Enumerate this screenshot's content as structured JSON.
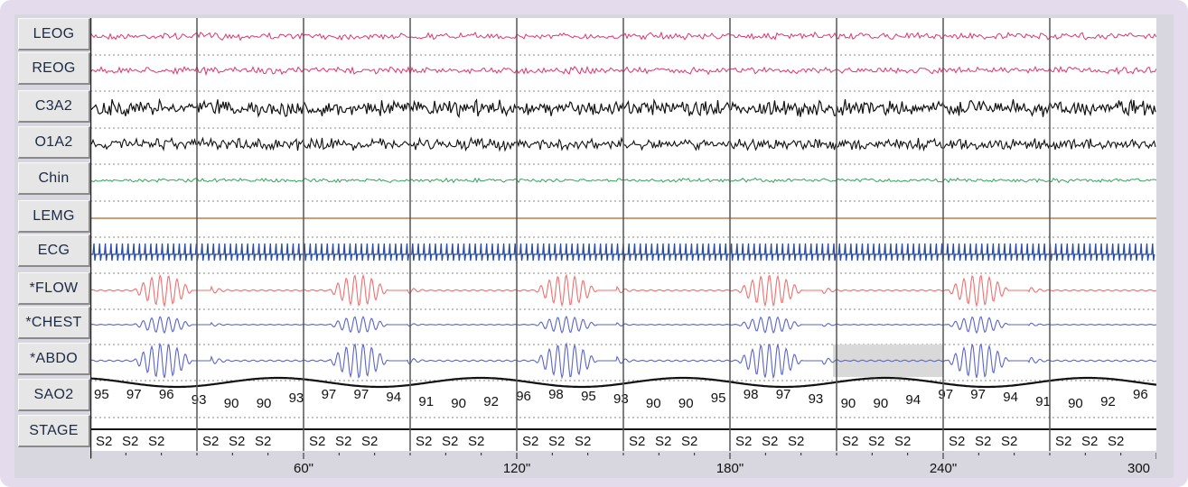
{
  "chart_data": {
    "type": "line",
    "title": "",
    "channels": [
      "LEOG",
      "REOG",
      "C3A2",
      "O1A2",
      "Chin",
      "LEMG",
      "ECG",
      "*FLOW",
      "*CHEST",
      "*ABDO",
      "SAO2",
      "STAGE"
    ],
    "x_axis": {
      "ticks": [
        "60\"",
        "120\"",
        "180\"",
        "240\"",
        "300"
      ],
      "range_seconds": [
        0,
        300
      ]
    },
    "epoch_boundaries_seconds": [
      30,
      60,
      90,
      120,
      150,
      180,
      210,
      240,
      270
    ],
    "sao2_values": [
      "95",
      "97",
      "96",
      "93",
      "90",
      "90",
      "93",
      "97",
      "97",
      "94",
      "91",
      "90",
      "92",
      "96",
      "98",
      "95",
      "93",
      "90",
      "90",
      "95",
      "98",
      "97",
      "93",
      "90",
      "90",
      "94",
      "97",
      "97",
      "94",
      "91",
      "90",
      "92",
      "96"
    ],
    "stage_values": [
      "S2",
      "S2",
      "S2",
      "S2",
      "S2",
      "S2",
      "S2",
      "S2",
      "S2",
      "S2",
      "S2",
      "S2",
      "S2",
      "S2",
      "S2",
      "S2",
      "S2",
      "S2",
      "S2",
      "S2",
      "S2",
      "S2",
      "S2",
      "S2",
      "S2",
      "S2",
      "S2",
      "S2",
      "S2",
      "S2"
    ],
    "respiratory_events": [
      {
        "start": 12,
        "end": 34
      },
      {
        "start": 67,
        "end": 89
      },
      {
        "start": 125,
        "end": 148
      },
      {
        "start": 182,
        "end": 206
      },
      {
        "start": 241,
        "end": 264
      }
    ],
    "colors": {
      "eog": "#e0336f",
      "eeg": "#111111",
      "chin": "#2fa55a",
      "lemg": "#b5651d",
      "ecg": "#2a4ea6",
      "flow": "#f07070",
      "effort": "#5a66c8",
      "grid": "#555555",
      "shade": "#d9d9d9"
    }
  }
}
